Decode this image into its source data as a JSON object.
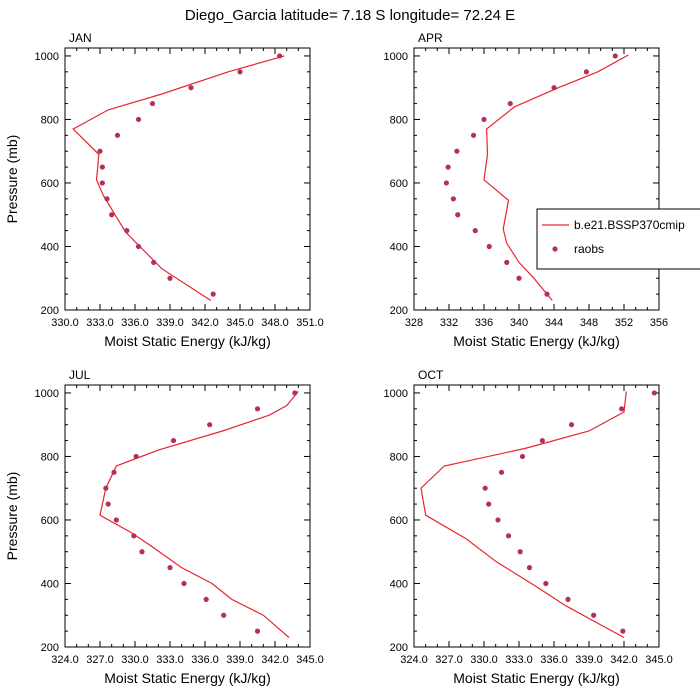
{
  "title": "Diego_Garcia  latitude= 7.18 S longitude= 72.24 E",
  "colors": {
    "model": "#e8262c",
    "obs": "#b03060",
    "axis": "#000000"
  },
  "chart_data": [
    {
      "type": "line",
      "panel": "JAN",
      "xlabel": "Moist Static Energy (kJ/kg)",
      "ylabel": "Pressure (mb)",
      "xlim": [
        330,
        351
      ],
      "ylim": [
        1025,
        200
      ],
      "x_ticks": [
        330.0,
        333.0,
        336.0,
        339.0,
        342.0,
        345.0,
        348.0,
        351.0
      ],
      "x_tick_labels": [
        "330.0",
        "333.0",
        "336.0",
        "339.0",
        "342.0",
        "345.0",
        "348.0",
        "351.0"
      ],
      "y_ticks": [
        200,
        400,
        600,
        800,
        1000
      ],
      "y_tick_labels": [
        "200",
        "400",
        "600",
        "800",
        "1000"
      ],
      "legend": false,
      "series": [
        {
          "name": "b.e21.BSSP370cmip",
          "style": "line",
          "x": [
            342.5,
            338.3,
            335.2,
            333.3,
            332.7,
            332.8,
            332.9,
            330.7,
            333.7,
            338.3,
            344.0,
            348.8
          ],
          "y": [
            230,
            330,
            445,
            560,
            610,
            650,
            690,
            770,
            830,
            880,
            950,
            1000
          ]
        },
        {
          "name": "raobs",
          "style": "markers",
          "x": [
            342.7,
            339.0,
            337.6,
            336.3,
            335.3,
            334.0,
            333.6,
            333.2,
            333.2,
            333.0,
            334.5,
            336.3,
            337.5,
            340.8,
            345.0,
            348.4
          ],
          "y": [
            250,
            300,
            350,
            400,
            450,
            500,
            550,
            600,
            650,
            700,
            750,
            800,
            850,
            900,
            950,
            1000
          ]
        }
      ]
    },
    {
      "type": "line",
      "panel": "APR",
      "xlabel": "Moist Static Energy (kJ/kg)",
      "ylabel": "",
      "xlim": [
        328,
        356
      ],
      "ylim": [
        1025,
        200
      ],
      "x_ticks": [
        328,
        332,
        336,
        340,
        344,
        348,
        352,
        356
      ],
      "x_tick_labels": [
        "328",
        "332",
        "336",
        "340",
        "344",
        "348",
        "352",
        "356"
      ],
      "y_ticks": [
        200,
        400,
        600,
        800,
        1000
      ],
      "y_tick_labels": [
        "200",
        "400",
        "600",
        "800",
        "1000"
      ],
      "legend": true,
      "series": [
        {
          "name": "b.e21.BSSP370cmip",
          "style": "line",
          "x": [
            343.8,
            341.7,
            340.0,
            338.6,
            338.2,
            338.8,
            336.0,
            336.4,
            336.3,
            339.5,
            344.5,
            349.0,
            352.5
          ],
          "y": [
            230,
            300,
            350,
            410,
            455,
            545,
            610,
            690,
            770,
            840,
            900,
            950,
            1003
          ]
        },
        {
          "name": "raobs",
          "style": "markers",
          "x": [
            343.2,
            340.0,
            338.6,
            336.6,
            335.0,
            333.0,
            332.5,
            331.7,
            331.9,
            332.9,
            334.8,
            336.0,
            339.0,
            344.0,
            347.7,
            351.0
          ],
          "y": [
            250,
            300,
            350,
            400,
            450,
            500,
            550,
            600,
            650,
            700,
            750,
            800,
            850,
            900,
            950,
            1000
          ]
        }
      ]
    },
    {
      "type": "line",
      "panel": "JUL",
      "xlabel": "Moist Static Energy (kJ/kg)",
      "ylabel": "Pressure (mb)",
      "xlim": [
        324,
        345
      ],
      "ylim": [
        1025,
        200
      ],
      "x_ticks": [
        324.0,
        327.0,
        330.0,
        333.0,
        336.0,
        339.0,
        342.0,
        345.0
      ],
      "x_tick_labels": [
        "324.0",
        "327.0",
        "330.0",
        "333.0",
        "336.0",
        "339.0",
        "342.0",
        "345.0"
      ],
      "y_ticks": [
        200,
        400,
        600,
        800,
        1000
      ],
      "y_tick_labels": [
        "200",
        "400",
        "600",
        "800",
        "1000"
      ],
      "legend": false,
      "series": [
        {
          "name": "b.e21.BSSP370cmip",
          "style": "line",
          "x": [
            343.2,
            341.0,
            338.3,
            336.6,
            334.0,
            331.3,
            329.7,
            327.0,
            327.5,
            328.4,
            332.0,
            337.5,
            341.5,
            343.0,
            344.0
          ],
          "y": [
            230,
            300,
            350,
            400,
            450,
            520,
            560,
            615,
            700,
            770,
            820,
            880,
            930,
            960,
            1005
          ]
        },
        {
          "name": "raobs",
          "style": "markers",
          "x": [
            340.5,
            337.6,
            336.1,
            334.2,
            333.0,
            330.6,
            329.9,
            328.4,
            327.7,
            327.5,
            328.2,
            330.1,
            333.3,
            336.4,
            340.5,
            343.7
          ],
          "y": [
            250,
            300,
            350,
            400,
            450,
            500,
            550,
            600,
            650,
            700,
            750,
            800,
            850,
            900,
            950,
            1000
          ]
        }
      ]
    },
    {
      "type": "line",
      "panel": "OCT",
      "xlabel": "Moist Static Energy (kJ/kg)",
      "ylabel": "",
      "xlim": [
        324,
        345
      ],
      "ylim": [
        1025,
        200
      ],
      "x_ticks": [
        324.0,
        327.0,
        330.0,
        333.0,
        336.0,
        339.0,
        342.0,
        345.0
      ],
      "x_tick_labels": [
        "324.0",
        "327.0",
        "330.0",
        "333.0",
        "336.0",
        "339.0",
        "342.0",
        "345.0"
      ],
      "y_ticks": [
        200,
        400,
        600,
        800,
        1000
      ],
      "y_tick_labels": [
        "200",
        "400",
        "600",
        "800",
        "1000"
      ],
      "legend": false,
      "series": [
        {
          "name": "b.e21.BSSP370cmip",
          "style": "line",
          "x": [
            342.0,
            339.5,
            337.0,
            334.5,
            331.0,
            328.5,
            325.0,
            324.6,
            326.6,
            333.5,
            339.0,
            342.0,
            342.2
          ],
          "y": [
            230,
            280,
            330,
            390,
            470,
            540,
            615,
            700,
            770,
            825,
            880,
            940,
            1005
          ]
        },
        {
          "name": "raobs",
          "style": "markers",
          "x": [
            341.9,
            339.4,
            337.2,
            335.3,
            333.9,
            333.1,
            332.1,
            331.2,
            330.4,
            330.1,
            331.5,
            333.3,
            335.0,
            337.5,
            341.8,
            344.6
          ],
          "y": [
            250,
            300,
            350,
            400,
            450,
            500,
            550,
            600,
            650,
            700,
            750,
            800,
            850,
            900,
            950,
            1000
          ]
        }
      ]
    }
  ]
}
